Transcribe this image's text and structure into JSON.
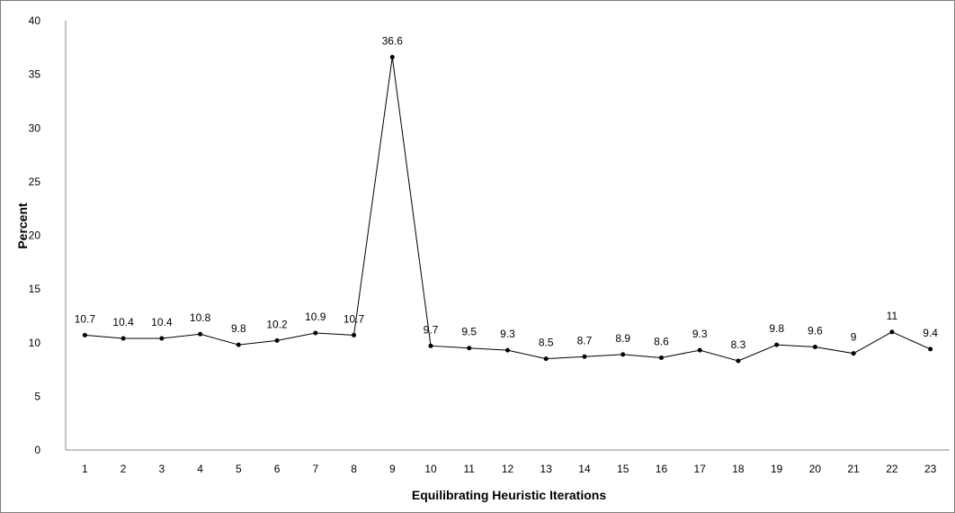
{
  "chart_data": {
    "type": "line",
    "title": "",
    "xlabel": "Equilibrating Heuristic Iterations",
    "ylabel": "Percent",
    "ylim": [
      0,
      40
    ],
    "yticks": [
      "0",
      "5",
      "10",
      "15",
      "20",
      "25",
      "30",
      "35",
      "40"
    ],
    "categories": [
      "1",
      "2",
      "3",
      "4",
      "5",
      "6",
      "7",
      "8",
      "9",
      "10",
      "11",
      "12",
      "13",
      "14",
      "15",
      "16",
      "17",
      "18",
      "19",
      "20",
      "21",
      "22",
      "23"
    ],
    "values": [
      10.7,
      10.4,
      10.4,
      10.8,
      9.8,
      10.2,
      10.9,
      10.7,
      36.6,
      9.7,
      9.5,
      9.3,
      8.5,
      8.7,
      8.9,
      8.6,
      9.3,
      8.3,
      9.8,
      9.6,
      9,
      11,
      9.4
    ],
    "data_labels": [
      "10.7",
      "10.4",
      "10.4",
      "10.8",
      "9.8",
      "10.2",
      "10.9",
      "10.7",
      "36.6",
      "9.7",
      "9.5",
      "9.3",
      "8.5",
      "8.7",
      "8.9",
      "8.6",
      "9.3",
      "8.3",
      "9.8",
      "9.6",
      "9",
      "11",
      "9.4"
    ],
    "grid": false,
    "legend": "none",
    "line_color": "#000000"
  }
}
